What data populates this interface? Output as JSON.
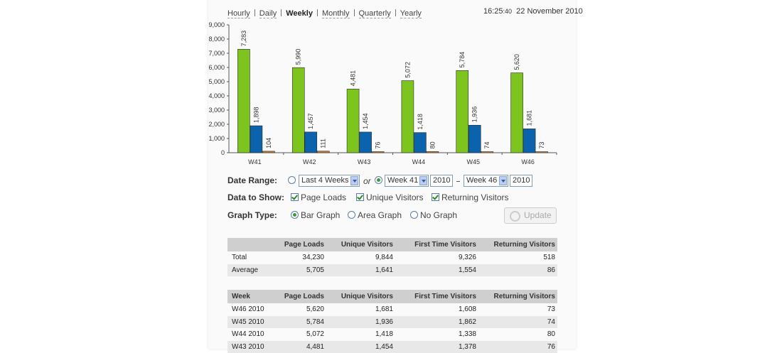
{
  "nav": {
    "links": [
      "Hourly",
      "Daily",
      "Weekly",
      "Monthly",
      "Quarterly",
      "Yearly"
    ],
    "current": 2
  },
  "clock": {
    "time_hm": "16:25",
    "time_s": ":40",
    "date": "22 November 2010"
  },
  "chart_data": {
    "type": "bar",
    "categories": [
      "W41",
      "W42",
      "W43",
      "W44",
      "W45",
      "W46"
    ],
    "series": [
      {
        "name": "Page Loads",
        "color": "#7ec41f",
        "values": [
          7283,
          5990,
          4481,
          5072,
          5784,
          5620
        ],
        "value_labels": [
          "7,283",
          "5,990",
          "4,481",
          "5,072",
          "5,784",
          "5,620"
        ]
      },
      {
        "name": "Unique Visitors",
        "color": "#0c63ad",
        "values": [
          1898,
          1457,
          1454,
          1418,
          1936,
          1681
        ],
        "value_labels": [
          "1,898",
          "1,457",
          "1,454",
          "1,418",
          "1,936",
          "1,681"
        ]
      },
      {
        "name": "Returning Visitors",
        "color": "#d07f2a",
        "values": [
          104,
          111,
          76,
          80,
          74,
          73
        ]
      }
    ],
    "ylim": [
      0,
      9000
    ],
    "yticks": [
      0,
      {
        "value": 1000,
        "label": "1,000"
      },
      {
        "value": 2000,
        "label": "2,000"
      },
      {
        "value": 3000,
        "label": "3,000"
      },
      {
        "value": 4000,
        "label": "4,000"
      },
      {
        "value": 5000,
        "label": "5,000"
      },
      {
        "value": 6000,
        "label": "6,000"
      },
      {
        "value": 7000,
        "label": "7,000"
      },
      {
        "value": 8000,
        "label": "8,000"
      },
      {
        "value": 9000,
        "label": "9,000"
      }
    ],
    "grid": false
  },
  "controls": {
    "date_range": {
      "label": "Date Range:",
      "preset": "Last 4 Weeks",
      "or": "or",
      "from_week": "Week 41",
      "from_year": "2010",
      "to_week": "Week 46",
      "to_year": "2010"
    },
    "data_to_show": {
      "label": "Data to Show:"
    },
    "graph_type": {
      "label": "Graph Type:",
      "options": [
        "Bar Graph",
        "Area Graph",
        "No Graph"
      ]
    },
    "update": "Update"
  },
  "summary_table": {
    "columns": [
      "Page Loads",
      "Unique Visitors",
      "First Time Visitors",
      "Returning Visitors"
    ],
    "rows": [
      [
        "Total",
        "34,230",
        "9,844",
        "9,326",
        "518"
      ],
      [
        "Average",
        "5,705",
        "1,641",
        "1,554",
        "86"
      ]
    ]
  },
  "weekly_table": {
    "columns": [
      "Week",
      "Page Loads",
      "Unique Visitors",
      "First Time Visitors",
      "Returning Visitors"
    ],
    "rows": [
      [
        "W46 2010",
        "5,620",
        "1,681",
        "1,608",
        "73"
      ],
      [
        "W45 2010",
        "5,784",
        "1,936",
        "1,862",
        "74"
      ],
      [
        "W44 2010",
        "5,072",
        "1,418",
        "1,338",
        "80"
      ],
      [
        "W43 2010",
        "4,481",
        "1,454",
        "1,378",
        "76"
      ]
    ]
  }
}
